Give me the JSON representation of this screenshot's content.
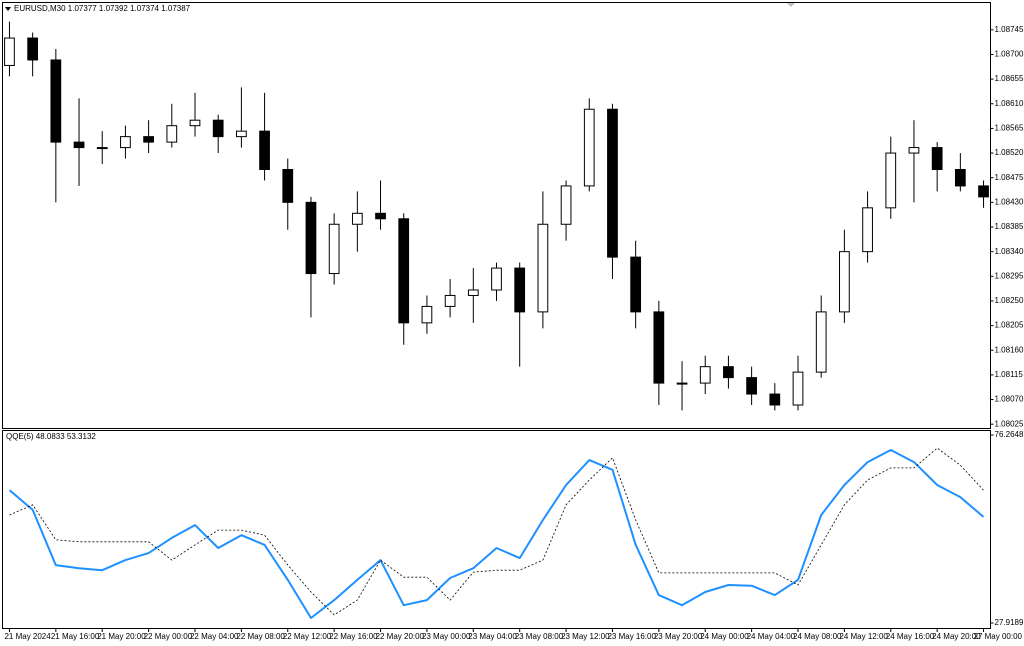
{
  "chart_data": [
    {
      "type": "candlestick",
      "title": "EURUSD,M30  1.07377 1.07392 1.07374 1.07387",
      "up_color": "#ffffff",
      "down_color": "#000000",
      "open": [
        1.0868,
        1.0873,
        1.0869,
        1.0854,
        1.0853,
        1.0853,
        1.0855,
        1.0854,
        1.0857,
        1.0858,
        1.0855,
        1.0856,
        1.0849,
        1.0843,
        1.083,
        1.0839,
        1.0841,
        1.084,
        1.0821,
        1.0824,
        1.0826,
        1.0827,
        1.0831,
        1.0823,
        1.0839,
        1.0846,
        1.086,
        1.0833,
        1.0823,
        1.081,
        1.081,
        1.0813,
        1.0811,
        1.0808,
        1.0806,
        1.0812,
        1.0823,
        1.0834,
        1.0842,
        1.0852,
        1.0853,
        1.0849,
        1.0846
      ],
      "high": [
        1.0876,
        1.0874,
        1.0871,
        1.0862,
        1.0856,
        1.0857,
        1.0858,
        1.0861,
        1.0863,
        1.0859,
        1.0864,
        1.0863,
        1.0851,
        1.0844,
        1.0841,
        1.0845,
        1.0847,
        1.0841,
        1.0826,
        1.0829,
        1.0831,
        1.0832,
        1.0832,
        1.0845,
        1.0847,
        1.0862,
        1.0861,
        1.0836,
        1.0825,
        1.0814,
        1.0815,
        1.0815,
        1.0813,
        1.081,
        1.0815,
        1.0826,
        1.0838,
        1.0845,
        1.0855,
        1.0858,
        1.0854,
        1.0852,
        1.0847
      ],
      "low": [
        1.0866,
        1.0866,
        1.0843,
        1.0846,
        1.085,
        1.0851,
        1.0852,
        1.0853,
        1.0855,
        1.0852,
        1.0853,
        1.0847,
        1.0838,
        1.0822,
        1.0828,
        1.0834,
        1.0838,
        1.0817,
        1.0819,
        1.0822,
        1.0821,
        1.0825,
        1.0813,
        1.082,
        1.0836,
        1.0845,
        1.0829,
        1.082,
        1.0806,
        1.0805,
        1.0808,
        1.0809,
        1.0806,
        1.0805,
        1.0805,
        1.0811,
        1.0821,
        1.0832,
        1.084,
        1.0843,
        1.0845,
        1.0845,
        1.0842
      ],
      "close": [
        1.0873,
        1.0869,
        1.0854,
        1.0853,
        1.0853,
        1.0855,
        1.0854,
        1.0857,
        1.0858,
        1.0855,
        1.0856,
        1.0849,
        1.0843,
        1.083,
        1.0839,
        1.0841,
        1.084,
        1.0821,
        1.0824,
        1.0826,
        1.0827,
        1.0831,
        1.0823,
        1.0839,
        1.0846,
        1.086,
        1.0833,
        1.0823,
        1.081,
        1.081,
        1.0813,
        1.0811,
        1.0808,
        1.0806,
        1.0812,
        1.0823,
        1.0834,
        1.0842,
        1.0852,
        1.0853,
        1.0849,
        1.0846,
        1.0844
      ],
      "xlim": [
        -0.3,
        42.3
      ],
      "xticks": [
        {
          "value": 0,
          "label": "21 May 2024"
        },
        {
          "value": 2,
          "label": "21 May 16:00"
        },
        {
          "value": 4,
          "label": "21 May 20:00"
        },
        {
          "value": 6,
          "label": "22 May 00:00"
        },
        {
          "value": 8,
          "label": "22 May 04:00"
        },
        {
          "value": 10,
          "label": "22 May 08:00"
        },
        {
          "value": 12,
          "label": "22 May 12:00"
        },
        {
          "value": 14,
          "label": "22 May 16:00"
        },
        {
          "value": 16,
          "label": "22 May 20:00"
        },
        {
          "value": 18,
          "label": "23 May 00:00"
        },
        {
          "value": 20,
          "label": "23 May 04:00"
        },
        {
          "value": 22,
          "label": "23 May 08:00"
        },
        {
          "value": 24,
          "label": "23 May 12:00"
        },
        {
          "value": 26,
          "label": "23 May 16:00"
        },
        {
          "value": 28,
          "label": "23 May 20:00"
        },
        {
          "value": 30,
          "label": "24 May 00:00"
        },
        {
          "value": 32,
          "label": "24 May 04:00"
        },
        {
          "value": 34,
          "label": "24 May 08:00"
        },
        {
          "value": 36,
          "label": "24 May 12:00"
        },
        {
          "value": 38,
          "label": "24 May 16:00"
        },
        {
          "value": 40,
          "label": "24 May 20:00"
        },
        {
          "value": 42,
          "label": "27 May 00:00"
        }
      ],
      "ylim": [
        1.08018,
        1.08794
      ],
      "yticks": [
        1.08745,
        {
          "value": 1.087,
          "label": "1.08700"
        },
        1.08655,
        {
          "value": 1.0861,
          "label": "1.08610"
        },
        1.08565,
        {
          "value": 1.0852,
          "label": "1.08520"
        },
        1.08475,
        {
          "value": 1.0843,
          "label": "1.08430"
        },
        1.08385,
        {
          "value": 1.0834,
          "label": "1.08340"
        },
        1.08295,
        {
          "value": 1.0825,
          "label": "1.08250"
        },
        1.08205,
        {
          "value": 1.0816,
          "label": "1.08160"
        },
        1.08115,
        {
          "value": 1.0807,
          "label": "1.08070"
        },
        1.08025
      ]
    },
    {
      "type": "line",
      "title": "QQE(5) 48.0833 53.3132",
      "series": [
        {
          "color": "#1e90ff",
          "dash": false,
          "values": [
            62.1,
            57.0,
            42.8,
            42.0,
            41.5,
            44.1,
            45.9,
            49.8,
            53.1,
            47.2,
            50.5,
            48.0,
            39.0,
            29.2,
            33.8,
            39.0,
            44.1,
            32.5,
            33.8,
            39.5,
            42.0,
            47.2,
            44.6,
            54.4,
            63.4,
            69.8,
            67.3,
            48.0,
            35.1,
            32.5,
            35.9,
            37.7,
            37.5,
            35.1,
            39.0,
            55.7,
            63.4,
            69.3,
            72.4,
            69.3,
            63.4,
            60.3,
            55.2
          ]
        },
        {
          "color": "#000000",
          "dash": true,
          "values": [
            55.7,
            58.3,
            49.3,
            48.8,
            48.8,
            48.8,
            48.8,
            44.1,
            48.0,
            51.8,
            51.8,
            50.5,
            42.8,
            35.9,
            30.0,
            33.8,
            44.1,
            39.7,
            39.7,
            33.8,
            41.0,
            41.5,
            41.5,
            44.1,
            58.3,
            64.7,
            70.4,
            54.4,
            40.8,
            40.8,
            40.8,
            40.8,
            40.8,
            40.8,
            37.7,
            48.0,
            58.3,
            64.7,
            67.8,
            67.8,
            72.9,
            68.5,
            62.1
          ]
        }
      ],
      "ylim": [
        26.63,
        77.29
      ],
      "yticks": [
        76.2648,
        27.9189
      ]
    }
  ]
}
